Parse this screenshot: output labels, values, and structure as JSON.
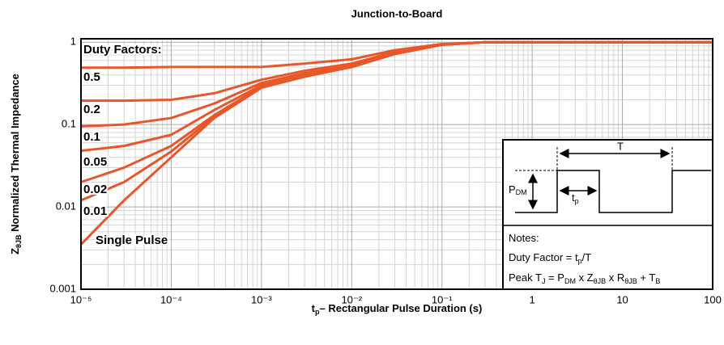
{
  "chart_data": {
    "type": "line",
    "title": "Junction-to-Board",
    "xlabel": [
      "t",
      "p",
      "– Rectangular Pulse Duration (s)"
    ],
    "ylabel": [
      "Z",
      "θJB",
      " Normalized Thermal Impedance"
    ],
    "xscale": "log",
    "yscale": "log",
    "xlim": [
      1e-05,
      100
    ],
    "ylim": [
      0.001,
      1.1
    ],
    "xticks": [
      {
        "value": 1e-05,
        "label": "10⁻⁵"
      },
      {
        "value": 0.0001,
        "label": "10⁻⁴"
      },
      {
        "value": 0.001,
        "label": "10⁻³"
      },
      {
        "value": 0.01,
        "label": "10⁻²"
      },
      {
        "value": 0.1,
        "label": "10⁻¹"
      },
      1,
      10,
      100
    ],
    "yticks": [
      0.001,
      0.01,
      0.1,
      1
    ],
    "grid": true,
    "minor_grid": true,
    "legend_title": "Duty Factors:",
    "x": [
      1e-05,
      3e-05,
      0.0001,
      0.0003,
      0.001,
      0.003,
      0.01,
      0.03,
      0.1,
      0.3,
      1,
      10,
      100
    ],
    "series": [
      {
        "name": "0.5",
        "color": "#e8572a",
        "values": [
          0.49,
          0.49,
          0.5,
          0.5,
          0.5,
          0.55,
          0.62,
          0.8,
          0.95,
          1,
          1,
          1,
          1
        ]
      },
      {
        "name": "0.2",
        "color": "#e8572a",
        "values": [
          0.195,
          0.195,
          0.2,
          0.24,
          0.35,
          0.45,
          0.55,
          0.76,
          0.94,
          1,
          1,
          1,
          1
        ]
      },
      {
        "name": "0.1",
        "color": "#e8572a",
        "values": [
          0.095,
          0.1,
          0.12,
          0.18,
          0.32,
          0.42,
          0.52,
          0.74,
          0.94,
          1,
          1,
          1,
          1
        ]
      },
      {
        "name": "0.05",
        "color": "#e8572a",
        "values": [
          0.048,
          0.055,
          0.075,
          0.15,
          0.3,
          0.4,
          0.51,
          0.73,
          0.93,
          1,
          1,
          1,
          1
        ]
      },
      {
        "name": "0.02",
        "color": "#e8572a",
        "values": [
          0.02,
          0.03,
          0.055,
          0.13,
          0.29,
          0.39,
          0.5,
          0.72,
          0.93,
          1,
          1,
          1,
          1
        ]
      },
      {
        "name": "0.01",
        "color": "#e8572a",
        "values": [
          0.012,
          0.02,
          0.047,
          0.125,
          0.285,
          0.385,
          0.5,
          0.72,
          0.93,
          1,
          1,
          1,
          1
        ]
      },
      {
        "name": "Single Pulse",
        "color": "#e8572a",
        "values": [
          0.0035,
          0.012,
          0.04,
          0.12,
          0.28,
          0.38,
          0.5,
          0.72,
          0.93,
          1,
          1,
          1,
          1
        ]
      }
    ],
    "inset": {
      "p_label": [
        "P",
        "DM"
      ],
      "t_label": [
        "t",
        "p"
      ],
      "period_label": "T"
    },
    "notes": [
      [
        "Notes:"
      ],
      [
        "Duty Factor = t",
        "p",
        "/T"
      ],
      [
        "Peak T",
        "J",
        " = P",
        "DM",
        " x Z",
        "θJB",
        " x R",
        "θJB",
        " + T",
        "B"
      ]
    ]
  }
}
